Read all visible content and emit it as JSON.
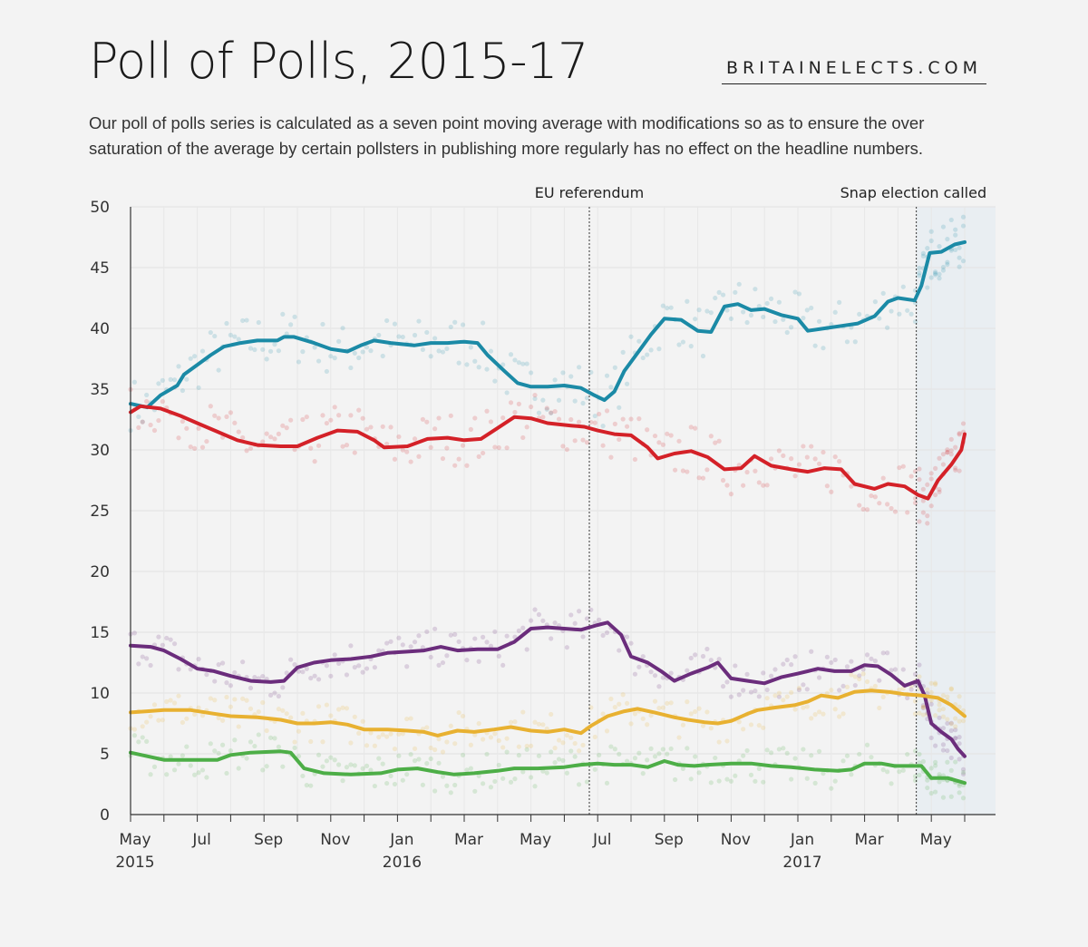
{
  "header": {
    "title": "Poll of Polls, 2015-17",
    "brand": "BRITAINELECTS.COM",
    "subtitle": "Our poll of polls series is calculated as a seven point moving average with modifications so as to ensure the over saturation of the average by certain pollsters in publishing more regularly has no effect on the headline numbers."
  },
  "chart_data": {
    "type": "line",
    "xlabels": [
      {
        "label": "May",
        "year": "2015",
        "m": 0
      },
      {
        "label": "Jul",
        "year": "",
        "m": 2
      },
      {
        "label": "Sep",
        "year": "",
        "m": 4
      },
      {
        "label": "Nov",
        "year": "",
        "m": 6
      },
      {
        "label": "Jan",
        "year": "2016",
        "m": 8
      },
      {
        "label": "Mar",
        "year": "",
        "m": 10
      },
      {
        "label": "May",
        "year": "",
        "m": 12
      },
      {
        "label": "Jul",
        "year": "",
        "m": 14
      },
      {
        "label": "Sep",
        "year": "",
        "m": 16
      },
      {
        "label": "Nov",
        "year": "",
        "m": 18
      },
      {
        "label": "Jan",
        "year": "2017",
        "m": 20
      },
      {
        "label": "Mar",
        "year": "",
        "m": 22
      },
      {
        "label": "May",
        "year": "",
        "m": 24
      }
    ],
    "xlim_months": [
      0,
      25.5
    ],
    "ylim": [
      0,
      50
    ],
    "yticks": [
      0,
      5,
      10,
      15,
      20,
      25,
      30,
      35,
      40,
      45,
      50
    ],
    "grid": true,
    "annotations": [
      {
        "label": "EU referendum",
        "m": 13.75
      },
      {
        "label": "Snap election called",
        "m": 23.55
      }
    ],
    "shaded_from_m": 23.55,
    "series": [
      {
        "color": "#1b8aa6",
        "points": [
          [
            0,
            33.8
          ],
          [
            0.5,
            33.5
          ],
          [
            0.9,
            34.5
          ],
          [
            1.4,
            35.3
          ],
          [
            1.6,
            36.2
          ],
          [
            2,
            37
          ],
          [
            2.4,
            37.8
          ],
          [
            2.8,
            38.5
          ],
          [
            3.3,
            38.8
          ],
          [
            3.8,
            39
          ],
          [
            4.4,
            39
          ],
          [
            4.6,
            39.3
          ],
          [
            4.9,
            39.3
          ],
          [
            5.5,
            38.8
          ],
          [
            6,
            38.3
          ],
          [
            6.5,
            38.1
          ],
          [
            6.9,
            38.6
          ],
          [
            7.3,
            39
          ],
          [
            7.8,
            38.8
          ],
          [
            8.5,
            38.6
          ],
          [
            9,
            38.8
          ],
          [
            9.5,
            38.8
          ],
          [
            10,
            38.9
          ],
          [
            10.4,
            38.8
          ],
          [
            10.7,
            37.8
          ],
          [
            11.2,
            36.5
          ],
          [
            11.6,
            35.5
          ],
          [
            12,
            35.2
          ],
          [
            12.5,
            35.2
          ],
          [
            13,
            35.3
          ],
          [
            13.5,
            35.1
          ],
          [
            13.9,
            34.5
          ],
          [
            14.2,
            34.1
          ],
          [
            14.5,
            34.8
          ],
          [
            14.8,
            36.5
          ],
          [
            15.2,
            38
          ],
          [
            15.6,
            39.5
          ],
          [
            16,
            40.8
          ],
          [
            16.5,
            40.7
          ],
          [
            17,
            39.8
          ],
          [
            17.4,
            39.7
          ],
          [
            17.8,
            41.8
          ],
          [
            18.2,
            42
          ],
          [
            18.6,
            41.5
          ],
          [
            19,
            41.6
          ],
          [
            19.5,
            41.1
          ],
          [
            20,
            40.8
          ],
          [
            20.3,
            39.8
          ],
          [
            20.8,
            40
          ],
          [
            21.3,
            40.2
          ],
          [
            21.8,
            40.4
          ],
          [
            22.3,
            41
          ],
          [
            22.7,
            42.2
          ],
          [
            23,
            42.5
          ],
          [
            23.5,
            42.3
          ],
          [
            23.7,
            43.5
          ],
          [
            23.95,
            46.2
          ],
          [
            24.3,
            46.3
          ],
          [
            24.7,
            46.9
          ],
          [
            25,
            47.1
          ]
        ]
      },
      {
        "color": "#d42128",
        "points": [
          [
            0,
            33.1
          ],
          [
            0.3,
            33.6
          ],
          [
            0.9,
            33.4
          ],
          [
            1.5,
            32.8
          ],
          [
            2,
            32.2
          ],
          [
            2.6,
            31.5
          ],
          [
            3.2,
            30.8
          ],
          [
            3.8,
            30.4
          ],
          [
            4.5,
            30.3
          ],
          [
            5,
            30.3
          ],
          [
            5.6,
            31
          ],
          [
            6.2,
            31.6
          ],
          [
            6.8,
            31.5
          ],
          [
            7.3,
            30.8
          ],
          [
            7.6,
            30.2
          ],
          [
            8.3,
            30.3
          ],
          [
            8.9,
            30.9
          ],
          [
            9.5,
            31
          ],
          [
            10,
            30.8
          ],
          [
            10.5,
            30.9
          ],
          [
            11,
            31.8
          ],
          [
            11.5,
            32.7
          ],
          [
            12,
            32.6
          ],
          [
            12.5,
            32.2
          ],
          [
            13.2,
            32
          ],
          [
            13.6,
            31.9
          ],
          [
            14,
            31.6
          ],
          [
            14.5,
            31.3
          ],
          [
            15,
            31.2
          ],
          [
            15.5,
            30.2
          ],
          [
            15.8,
            29.3
          ],
          [
            16.3,
            29.7
          ],
          [
            16.8,
            29.9
          ],
          [
            17.3,
            29.4
          ],
          [
            17.8,
            28.4
          ],
          [
            18.3,
            28.5
          ],
          [
            18.7,
            29.5
          ],
          [
            19.2,
            28.7
          ],
          [
            19.8,
            28.4
          ],
          [
            20.3,
            28.2
          ],
          [
            20.8,
            28.5
          ],
          [
            21.3,
            28.4
          ],
          [
            21.7,
            27.2
          ],
          [
            22.3,
            26.8
          ],
          [
            22.7,
            27.2
          ],
          [
            23.2,
            27
          ],
          [
            23.6,
            26.3
          ],
          [
            23.9,
            26
          ],
          [
            24.2,
            27.5
          ],
          [
            24.6,
            28.8
          ],
          [
            24.9,
            30
          ],
          [
            25,
            31.3
          ]
        ]
      },
      {
        "color": "#6b2d7c",
        "points": [
          [
            0,
            13.9
          ],
          [
            0.6,
            13.8
          ],
          [
            1,
            13.5
          ],
          [
            1.5,
            12.8
          ],
          [
            2,
            12
          ],
          [
            2.5,
            11.8
          ],
          [
            3,
            11.4
          ],
          [
            3.6,
            11
          ],
          [
            4.2,
            10.9
          ],
          [
            4.6,
            11
          ],
          [
            5,
            12.1
          ],
          [
            5.5,
            12.5
          ],
          [
            6,
            12.7
          ],
          [
            6.6,
            12.8
          ],
          [
            7.2,
            13
          ],
          [
            7.7,
            13.3
          ],
          [
            8.3,
            13.4
          ],
          [
            8.8,
            13.5
          ],
          [
            9.3,
            13.8
          ],
          [
            9.8,
            13.5
          ],
          [
            10.4,
            13.6
          ],
          [
            11,
            13.6
          ],
          [
            11.5,
            14.2
          ],
          [
            12,
            15.3
          ],
          [
            12.5,
            15.4
          ],
          [
            13,
            15.3
          ],
          [
            13.5,
            15.2
          ],
          [
            14,
            15.6
          ],
          [
            14.3,
            15.8
          ],
          [
            14.7,
            14.8
          ],
          [
            15,
            13
          ],
          [
            15.5,
            12.5
          ],
          [
            15.9,
            11.8
          ],
          [
            16.3,
            11
          ],
          [
            16.8,
            11.6
          ],
          [
            17.3,
            12.1
          ],
          [
            17.6,
            12.5
          ],
          [
            18,
            11.2
          ],
          [
            18.5,
            11
          ],
          [
            19,
            10.8
          ],
          [
            19.5,
            11.3
          ],
          [
            20,
            11.6
          ],
          [
            20.6,
            12
          ],
          [
            21.1,
            11.8
          ],
          [
            21.6,
            11.8
          ],
          [
            22,
            12.3
          ],
          [
            22.4,
            12.2
          ],
          [
            22.8,
            11.5
          ],
          [
            23.2,
            10.6
          ],
          [
            23.6,
            11
          ],
          [
            23.8,
            9.8
          ],
          [
            24,
            7.5
          ],
          [
            24.3,
            6.8
          ],
          [
            24.6,
            6.2
          ],
          [
            24.8,
            5.4
          ],
          [
            25,
            4.8
          ]
        ]
      },
      {
        "color": "#e8b131",
        "points": [
          [
            0,
            8.4
          ],
          [
            0.5,
            8.5
          ],
          [
            1,
            8.6
          ],
          [
            1.8,
            8.6
          ],
          [
            2.5,
            8.3
          ],
          [
            3,
            8.1
          ],
          [
            3.8,
            8
          ],
          [
            4.5,
            7.8
          ],
          [
            5,
            7.5
          ],
          [
            5.5,
            7.5
          ],
          [
            6,
            7.6
          ],
          [
            6.5,
            7.4
          ],
          [
            7,
            7
          ],
          [
            7.7,
            7
          ],
          [
            8.3,
            6.9
          ],
          [
            8.8,
            6.8
          ],
          [
            9.2,
            6.5
          ],
          [
            9.8,
            6.9
          ],
          [
            10.3,
            6.8
          ],
          [
            10.9,
            7
          ],
          [
            11.4,
            7.2
          ],
          [
            12,
            6.9
          ],
          [
            12.5,
            6.8
          ],
          [
            13,
            7
          ],
          [
            13.5,
            6.7
          ],
          [
            13.8,
            7.3
          ],
          [
            14.3,
            8.1
          ],
          [
            14.8,
            8.5
          ],
          [
            15.2,
            8.7
          ],
          [
            15.7,
            8.4
          ],
          [
            16.3,
            8
          ],
          [
            16.7,
            7.8
          ],
          [
            17.2,
            7.6
          ],
          [
            17.6,
            7.5
          ],
          [
            18,
            7.7
          ],
          [
            18.5,
            8.3
          ],
          [
            18.8,
            8.6
          ],
          [
            19.3,
            8.8
          ],
          [
            19.9,
            9
          ],
          [
            20.3,
            9.3
          ],
          [
            20.7,
            9.8
          ],
          [
            21.2,
            9.6
          ],
          [
            21.7,
            10.1
          ],
          [
            22.2,
            10.2
          ],
          [
            22.7,
            10.1
          ],
          [
            23.2,
            9.9
          ],
          [
            23.7,
            9.8
          ],
          [
            24.2,
            9.6
          ],
          [
            24.6,
            9
          ],
          [
            25,
            8.1
          ]
        ]
      },
      {
        "color": "#4dae47",
        "points": [
          [
            0,
            5.1
          ],
          [
            0.5,
            4.8
          ],
          [
            1,
            4.5
          ],
          [
            2,
            4.5
          ],
          [
            2.6,
            4.5
          ],
          [
            3,
            4.9
          ],
          [
            3.6,
            5.1
          ],
          [
            4.5,
            5.2
          ],
          [
            4.8,
            5.1
          ],
          [
            5.2,
            3.8
          ],
          [
            5.8,
            3.4
          ],
          [
            6.6,
            3.3
          ],
          [
            7.5,
            3.4
          ],
          [
            8,
            3.7
          ],
          [
            8.6,
            3.8
          ],
          [
            9.2,
            3.5
          ],
          [
            9.7,
            3.3
          ],
          [
            10.3,
            3.4
          ],
          [
            11,
            3.6
          ],
          [
            11.5,
            3.8
          ],
          [
            12.2,
            3.8
          ],
          [
            13,
            3.9
          ],
          [
            13.5,
            4.1
          ],
          [
            14,
            4.2
          ],
          [
            14.5,
            4.1
          ],
          [
            15,
            4.1
          ],
          [
            15.5,
            3.9
          ],
          [
            16,
            4.4
          ],
          [
            16.4,
            4.1
          ],
          [
            16.9,
            4
          ],
          [
            17.3,
            4.1
          ],
          [
            18,
            4.2
          ],
          [
            18.6,
            4.2
          ],
          [
            19.2,
            4
          ],
          [
            19.8,
            3.9
          ],
          [
            20.5,
            3.7
          ],
          [
            21.2,
            3.6
          ],
          [
            21.6,
            3.7
          ],
          [
            22,
            4.2
          ],
          [
            22.5,
            4.2
          ],
          [
            22.9,
            4
          ],
          [
            23.4,
            4
          ],
          [
            23.7,
            4
          ],
          [
            24,
            3
          ],
          [
            24.5,
            3
          ],
          [
            25,
            2.6
          ]
        ]
      }
    ]
  }
}
